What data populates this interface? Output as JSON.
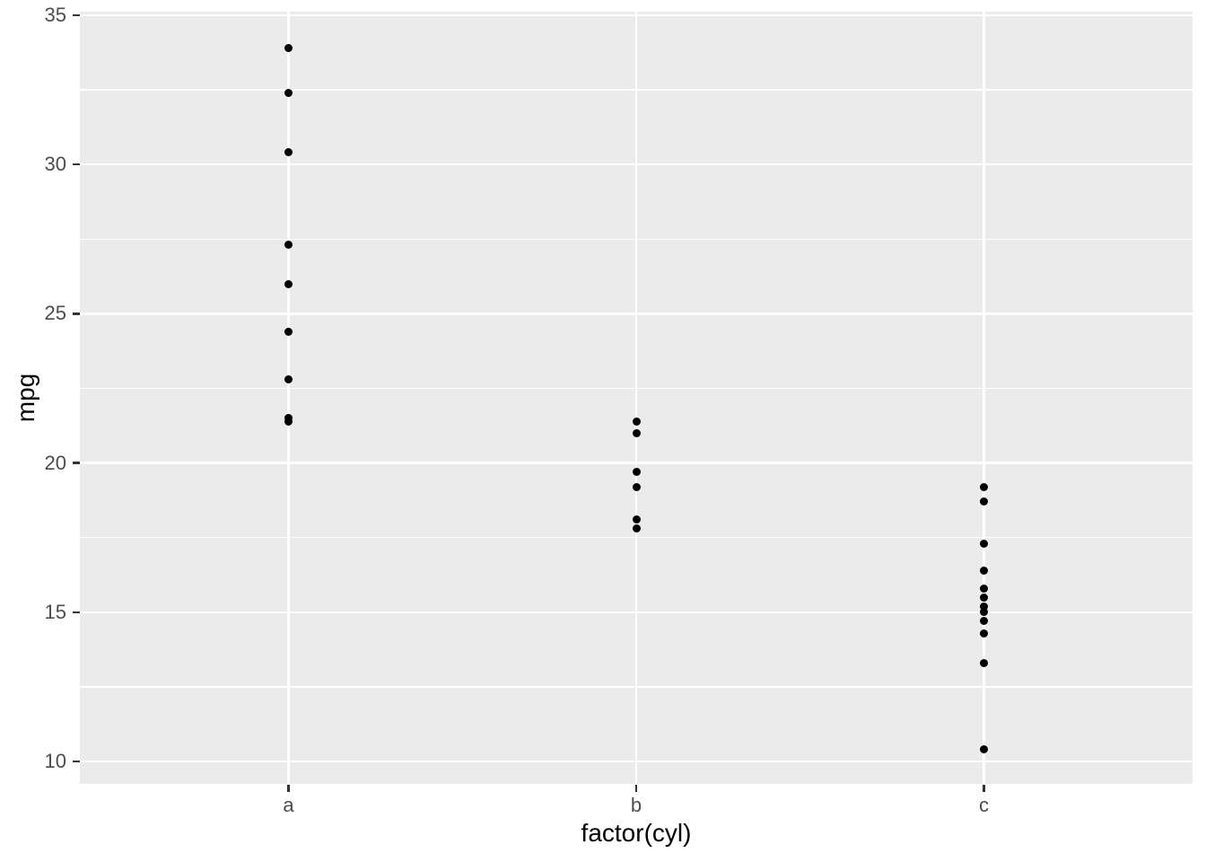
{
  "chart_data": {
    "type": "scatter",
    "title": "",
    "xlabel": "factor(cyl)",
    "ylabel": "mpg",
    "categories": [
      "a",
      "b",
      "c"
    ],
    "series": [
      {
        "name": "a",
        "values": [
          33.9,
          32.4,
          30.4,
          27.3,
          26.0,
          24.4,
          22.8,
          21.5,
          21.4
        ]
      },
      {
        "name": "b",
        "values": [
          21.4,
          21.0,
          19.7,
          19.2,
          18.1,
          17.8
        ]
      },
      {
        "name": "c",
        "values": [
          19.2,
          18.7,
          17.3,
          16.4,
          15.8,
          15.5,
          15.2,
          15.0,
          14.7,
          14.3,
          13.3,
          10.4
        ]
      }
    ],
    "y_major_ticks": [
      35,
      30,
      25,
      20,
      15,
      10
    ],
    "y_minor_gridlines": [
      32.5,
      27.5,
      22.5,
      17.5,
      12.5
    ],
    "ylim": [
      9.25,
      35.12
    ],
    "grid": true,
    "legend": "none",
    "style": {
      "panel_background": "#EBEBEB",
      "gridline_color": "#FFFFFF",
      "point_color": "#000000",
      "tick_label_color": "#4D4D4D",
      "tick_mark_color": "#333333",
      "axis_title_color": "#000000",
      "figure_background": "#FFFFFF"
    }
  }
}
